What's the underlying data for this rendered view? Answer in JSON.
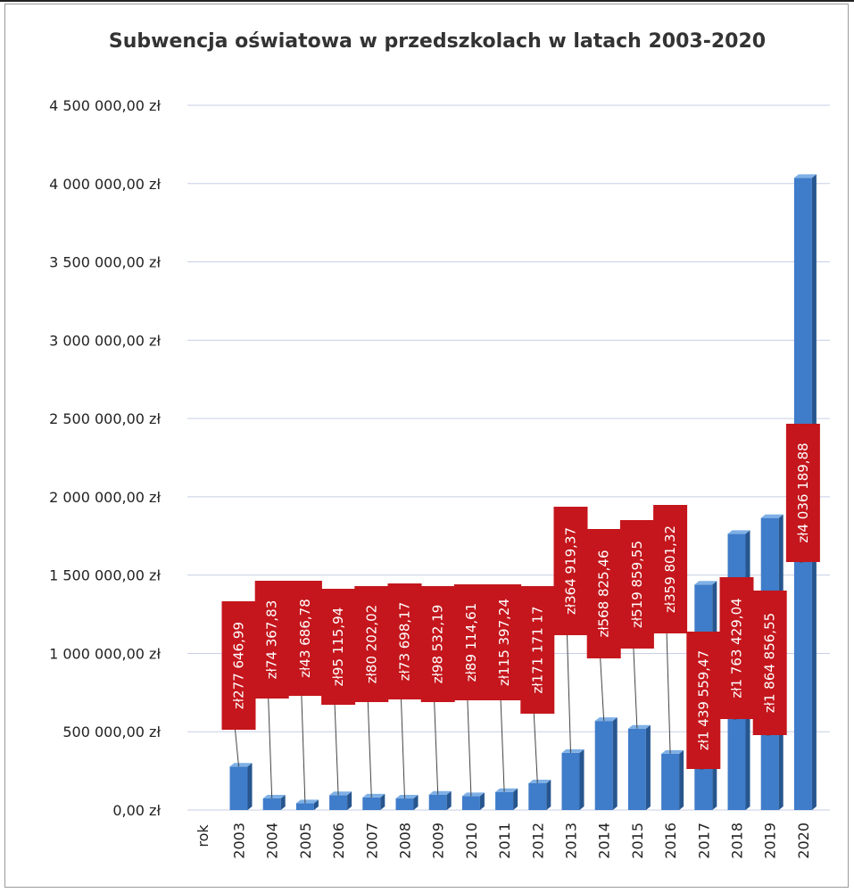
{
  "chart_data": {
    "type": "bar",
    "title": "Subwencja oświatowa w przedszkolach w latach 2003-2020",
    "xlabel": "rok",
    "ylabel": "",
    "categories": [
      "2003",
      "2004",
      "2005",
      "2006",
      "2007",
      "2008",
      "2009",
      "2010",
      "2011",
      "2012",
      "2013",
      "2014",
      "2015",
      "2016",
      "2017",
      "2018",
      "2019",
      "2020"
    ],
    "values": [
      277646.99,
      74367.83,
      43686.78,
      95115.94,
      80202.02,
      73698.17,
      98532.19,
      89114.61,
      115397.24,
      171171.17,
      364919.37,
      568825.46,
      519859.55,
      359801.32,
      1439559.47,
      1763429.04,
      1864856.55,
      4036189.88
    ],
    "data_labels": [
      "zł277 646,99",
      "zł74 367,83",
      "zł43 686,78",
      "zł95 115,94",
      "zł80 202,02",
      "zł73 698,17",
      "zł98 532,19",
      "zł89 114,61",
      "zł115 397,24",
      "zł171 171 17",
      "zł364 919,37",
      "zł568 825,46",
      "zł519 859,55",
      "zł359 801,32",
      "zł1 439 559,47",
      "zł1 763 429,04",
      "zł1 864 856,55",
      "zł4 036 189,88"
    ],
    "ylim": [
      0,
      4500000
    ],
    "yticks": [
      0,
      500000,
      1000000,
      1500000,
      2000000,
      2500000,
      3000000,
      3500000,
      4000000,
      4500000
    ],
    "ytick_labels": [
      "0,00 zł",
      "500 000,00 zł",
      "1 000 000,00 zł",
      "1 500 000,00 zł",
      "2 000 000,00 zł",
      "2 500 000,00 zł",
      "3 000 000,00 zł",
      "3 500 000,00 zł",
      "4 000 000,00 zł",
      "4 500 000,00 zł"
    ],
    "grid": true,
    "legend": "none",
    "colors": {
      "bar_front": "#3f7cc9",
      "bar_side": "#27568f",
      "bar_top": "#7fb0e6",
      "label_bg": "#c4161c",
      "label_text": "#ffffff",
      "gridline": "#c8cfe6"
    }
  }
}
